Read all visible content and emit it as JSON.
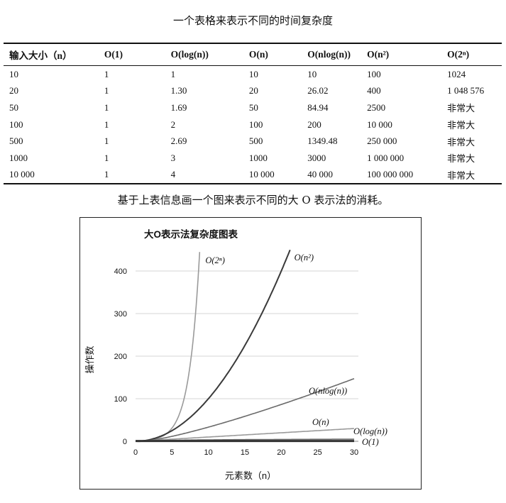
{
  "caption_top": "一个表格来表示不同的时间复杂度",
  "table": {
    "headers": [
      "输入大小（n）",
      "O(1)",
      "O(log(n))",
      "O(n)",
      "O(nlog(n))",
      "O(n²)",
      "O(2ⁿ)"
    ],
    "rows": [
      [
        "10",
        "1",
        "1",
        "10",
        "10",
        "100",
        "1024"
      ],
      [
        "20",
        "1",
        "1.30",
        "20",
        "26.02",
        "400",
        "1 048 576"
      ],
      [
        "50",
        "1",
        "1.69",
        "50",
        "84.94",
        "2500",
        "非常大"
      ],
      [
        "100",
        "1",
        "2",
        "100",
        "200",
        "10 000",
        "非常大"
      ],
      [
        "500",
        "1",
        "2.69",
        "500",
        "1349.48",
        "250 000",
        "非常大"
      ],
      [
        "1000",
        "1",
        "3",
        "1000",
        "3000",
        "1 000 000",
        "非常大"
      ],
      [
        "10 000",
        "1",
        "4",
        "10 000",
        "40 000",
        "100 000 000",
        "非常大"
      ]
    ]
  },
  "caption_mid": "基于上表信息画一个图来表示不同的大 O 表示法的消耗。",
  "chart_data": {
    "type": "line",
    "title": "大O表示法复杂度图表",
    "xlabel": "元素数（n）",
    "ylabel": "操作数",
    "xlim": [
      0,
      30
    ],
    "ylim": [
      0,
      450
    ],
    "xticks": [
      0,
      5,
      10,
      15,
      20,
      25,
      30
    ],
    "yticks": [
      0,
      100,
      200,
      300,
      400
    ],
    "grid": true,
    "series": [
      {
        "name": "O(2ⁿ)",
        "fn": "exp2",
        "x_max": 8.8,
        "color": "#9a9a9a"
      },
      {
        "name": "O(n²)",
        "fn": "square",
        "x_max": 21.2,
        "color": "#3a3a3a"
      },
      {
        "name": "O(nlog(n))",
        "fn": "nlogn",
        "x_max": 30,
        "color": "#6a6a6a"
      },
      {
        "name": "O(n)",
        "fn": "linear",
        "x_max": 30,
        "color": "#9a9a9a"
      },
      {
        "name": "O(log(n))",
        "fn": "log",
        "x_max": 30,
        "color": "#6a6a6a"
      },
      {
        "name": "O(1)",
        "fn": "const",
        "x_max": 30,
        "color": "#333333"
      }
    ]
  }
}
